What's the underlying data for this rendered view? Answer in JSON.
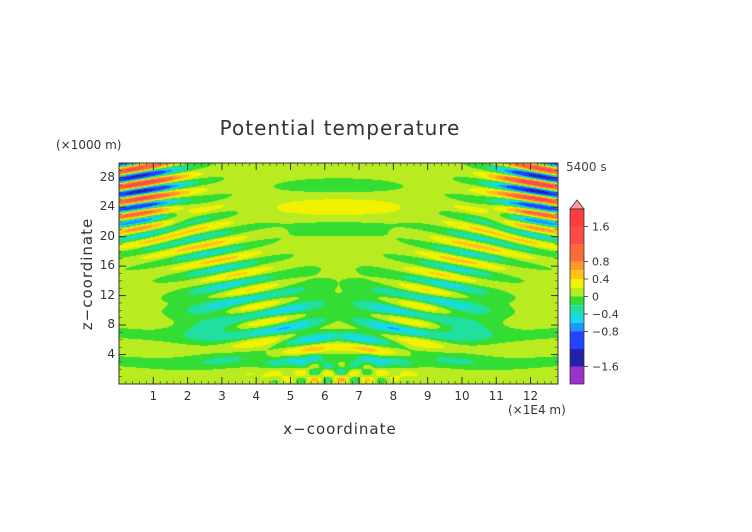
{
  "chart_data": {
    "type": "heatmap",
    "title": "Potential temperature",
    "xlabel": "x−coordinate",
    "ylabel": "z−coordinate",
    "x_unit": "(×1E4 m)",
    "z_unit": "(×1000 m)",
    "time_label": "5400 s",
    "xlim": [
      0,
      12.8
    ],
    "ylim": [
      0,
      30
    ],
    "x_ticks": [
      1,
      2,
      3,
      4,
      5,
      6,
      7,
      8,
      9,
      10,
      11,
      12
    ],
    "y_ticks": [
      4,
      8,
      12,
      16,
      20,
      24,
      28
    ],
    "colorbar": {
      "range": [
        -2.0,
        2.0
      ],
      "tick_values": [
        1.6,
        0.8,
        0.4,
        0,
        -0.4,
        -0.8,
        -1.6
      ],
      "tick_labels": [
        "1.6",
        "0.8",
        "0.4",
        "0",
        "−0.4",
        "−0.8",
        "−1.6"
      ],
      "levels": [
        {
          "from": 1.6,
          "to": 2.0,
          "color": "#ff3b3b"
        },
        {
          "from": 1.2,
          "to": 1.6,
          "color": "#ff4a4a"
        },
        {
          "from": 0.8,
          "to": 1.2,
          "color": "#ff6a3a"
        },
        {
          "from": 0.6,
          "to": 0.8,
          "color": "#ff9a2a"
        },
        {
          "from": 0.4,
          "to": 0.6,
          "color": "#ffc21a"
        },
        {
          "from": 0.2,
          "to": 0.4,
          "color": "#f2f200"
        },
        {
          "from": 0.0,
          "to": 0.2,
          "color": "#b8ec20"
        },
        {
          "from": -0.2,
          "to": 0.0,
          "color": "#33dd33"
        },
        {
          "from": -0.4,
          "to": -0.2,
          "color": "#1fe0a0"
        },
        {
          "from": -0.6,
          "to": -0.4,
          "color": "#1ad9e6"
        },
        {
          "from": -0.8,
          "to": -0.6,
          "color": "#1a99ff"
        },
        {
          "from": -1.2,
          "to": -0.8,
          "color": "#2244ff"
        },
        {
          "from": -1.6,
          "to": -1.2,
          "color": "#2222aa"
        },
        {
          "from": -2.0,
          "to": -1.6,
          "color": "#9933cc"
        }
      ],
      "over_color": "#ff9aa2"
    },
    "field_description_values": {
      "background_value": 0.05,
      "max_value": 1.7,
      "min_value": -1.5
    }
  }
}
